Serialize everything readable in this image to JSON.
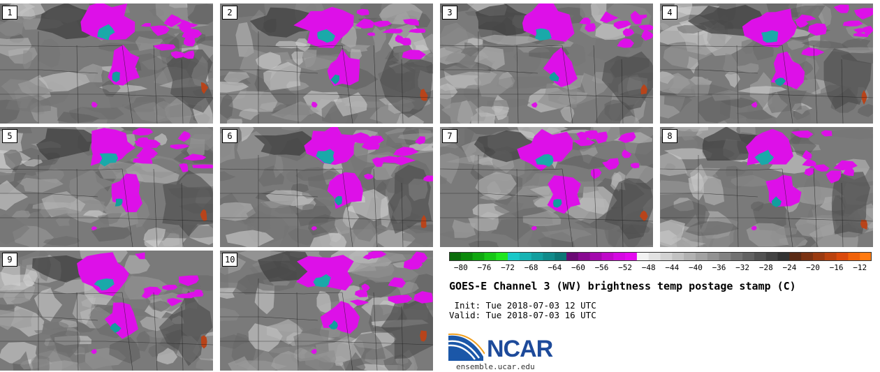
{
  "panels": [
    {
      "label": "1"
    },
    {
      "label": "2"
    },
    {
      "label": "3"
    },
    {
      "label": "4"
    },
    {
      "label": "5"
    },
    {
      "label": "6"
    },
    {
      "label": "7"
    },
    {
      "label": "8"
    },
    {
      "label": "9"
    },
    {
      "label": "10"
    }
  ],
  "colorbar": {
    "ticks": [
      "−80",
      "−76",
      "−72",
      "−68",
      "−64",
      "−60",
      "−56",
      "−52",
      "−48",
      "−44",
      "−40",
      "−36",
      "−32",
      "−28",
      "−24",
      "−20",
      "−16",
      "−12"
    ],
    "range": [
      -82,
      -10
    ],
    "colors": [
      "#0a6d0a",
      "#0b8a0b",
      "#10a710",
      "#17c617",
      "#20e520",
      "#19c8c8",
      "#17b3b3",
      "#139e9e",
      "#118a8a",
      "#0e7676",
      "#6a0a74",
      "#880a91",
      "#a30aad",
      "#bf0ac9",
      "#d50ae2",
      "#e40aef",
      "#f2f2f2",
      "#e2e2e2",
      "#d2d2d2",
      "#c2c2c2",
      "#b2b2b2",
      "#a2a2a2",
      "#929292",
      "#828282",
      "#727272",
      "#626262",
      "#525252",
      "#424242",
      "#323232",
      "#5a2a14",
      "#7a3212",
      "#9a3a10",
      "#ba420e",
      "#da4a0c",
      "#f0620a",
      "#ff7a10"
    ]
  },
  "title": "GOES-E Channel 3 (WV) brightness temp postage stamp (C)",
  "init_line": " Init: Tue 2018-07-03 12 UTC",
  "valid_line": "Valid: Tue 2018-07-03 16 UTC",
  "logo": {
    "name": "NCAR",
    "url": "ensemble.ucar.edu"
  }
}
